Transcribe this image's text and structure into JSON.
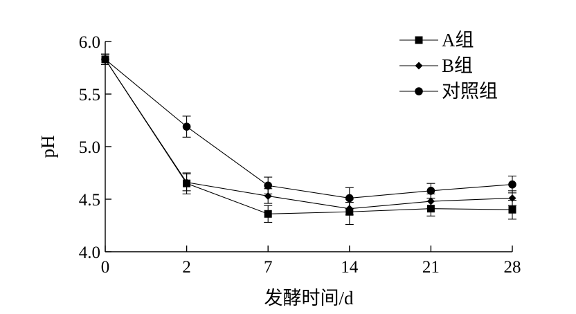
{
  "chart_data": {
    "type": "line",
    "title": "",
    "xlabel": "发酵时间/d",
    "ylabel": "pH",
    "categories": [
      "0",
      "2",
      "7",
      "14",
      "21",
      "28"
    ],
    "ylim": [
      4.0,
      6.0
    ],
    "yticks": [
      "4.0",
      "4.5",
      "5.0",
      "5.5",
      "6.0"
    ],
    "grid": false,
    "legend_position": "top-right",
    "series": [
      {
        "name": "A组",
        "marker": "square",
        "values": [
          5.83,
          4.65,
          4.36,
          4.38,
          4.41,
          4.4
        ],
        "errors": [
          0.05,
          0.1,
          0.08,
          0.12,
          0.07,
          0.09
        ]
      },
      {
        "name": "B组",
        "marker": "diamond",
        "values": [
          5.83,
          4.66,
          4.53,
          4.41,
          4.48,
          4.51
        ],
        "errors": [
          0.05,
          0.08,
          0.07,
          0.06,
          0.07,
          0.07
        ]
      },
      {
        "name": "对照组",
        "marker": "circle",
        "values": [
          5.83,
          5.19,
          4.63,
          4.51,
          4.58,
          4.64
        ],
        "errors": [
          0.05,
          0.1,
          0.08,
          0.1,
          0.07,
          0.08
        ]
      }
    ]
  }
}
